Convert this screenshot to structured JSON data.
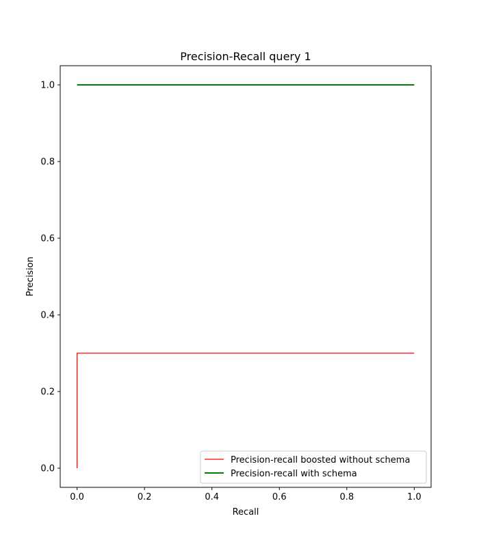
{
  "chart_data": {
    "type": "line",
    "title": "Precision-Recall query 1",
    "xlabel": "Recall",
    "ylabel": "Precision",
    "xlim": [
      -0.05,
      1.05
    ],
    "ylim": [
      -0.05,
      1.05
    ],
    "xticks": [
      0.0,
      0.2,
      0.4,
      0.6,
      0.8,
      1.0
    ],
    "yticks": [
      0.0,
      0.2,
      0.4,
      0.6,
      0.8,
      1.0
    ],
    "xtick_labels": [
      "0.0",
      "0.2",
      "0.4",
      "0.6",
      "0.8",
      "1.0"
    ],
    "ytick_labels": [
      "0.0",
      "0.2",
      "0.4",
      "0.6",
      "0.8",
      "1.0"
    ],
    "grid": false,
    "legend_position": "lower-right",
    "series": [
      {
        "name": "Precision-recall boosted without schema",
        "color": "#ff0000",
        "x": [
          0.0,
          0.0,
          1.0
        ],
        "y": [
          0.0,
          0.3,
          0.3
        ]
      },
      {
        "name": "Precision-recall with schema",
        "color": "#008000",
        "x": [
          0.0,
          1.0
        ],
        "y": [
          1.0,
          1.0
        ]
      }
    ]
  }
}
